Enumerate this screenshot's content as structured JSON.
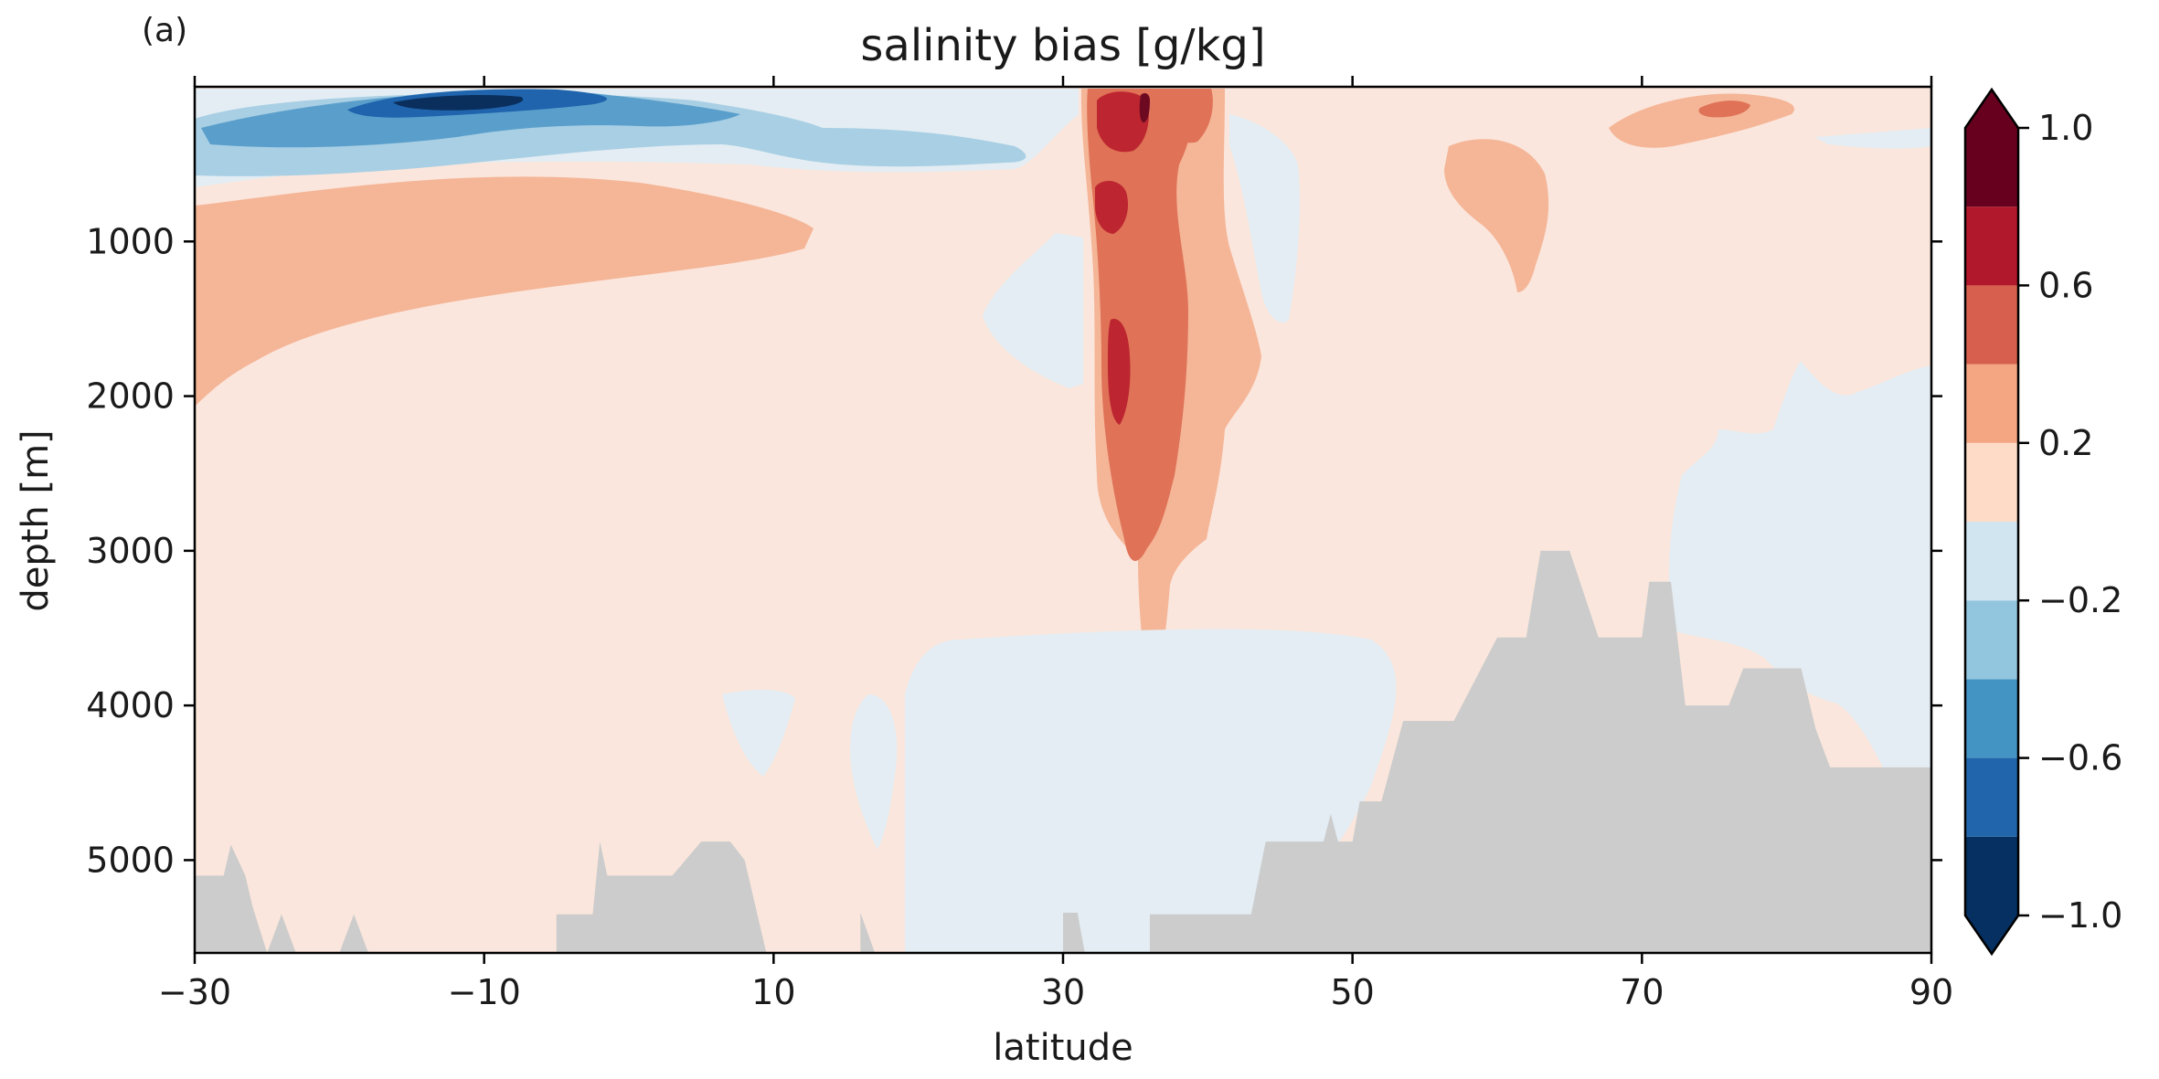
{
  "panel_label": "(a)",
  "chart_data": {
    "type": "heatmap",
    "subtype": "filled-contour",
    "title": "salinity bias [g/kg]",
    "xlabel": "latitude",
    "ylabel": "depth [m]",
    "xlim": [
      -30,
      90
    ],
    "ylim": [
      5600,
      0
    ],
    "y_inverted": true,
    "x_ticks": [
      -30,
      -10,
      10,
      30,
      50,
      70,
      90
    ],
    "x_tick_labels": [
      "−30",
      "−10",
      "10",
      "30",
      "50",
      "70",
      "90"
    ],
    "y_ticks": [
      1000,
      2000,
      3000,
      4000,
      5000
    ],
    "y_tick_labels": [
      "1000",
      "2000",
      "3000",
      "4000",
      "5000"
    ],
    "colorbar": {
      "levels": [
        -1.0,
        -0.8,
        -0.6,
        -0.4,
        -0.2,
        0.0,
        0.2,
        0.4,
        0.6,
        0.8,
        1.0
      ],
      "colors": [
        "#053061",
        "#2166ac",
        "#4393c3",
        "#92c5de",
        "#d1e5f0",
        "#fddbc7",
        "#f4a582",
        "#d6604d",
        "#b2182b",
        "#67001f"
      ],
      "extend_colors": {
        "under": "#053061",
        "over": "#67001f"
      },
      "ticks": [
        -1.0,
        -0.6,
        -0.2,
        0.2,
        0.6,
        1.0
      ],
      "tick_labels": [
        "−1.0",
        "−0.6",
        "−0.2",
        "0.2",
        "0.6",
        "1.0"
      ],
      "extend": "both"
    },
    "colors": {
      "background_field": "#fae6dc",
      "light_blue": "#e3edf3",
      "mid_blue": "#a9cfe4",
      "blue": "#5a9fcb",
      "dark_blue": "#1f64ad",
      "navy": "#0b2f5d",
      "light_red": "#f5b597",
      "red": "#df7257",
      "dark_red": "#bd2630",
      "maroon": "#6d0a22",
      "land": "#cccccc"
    },
    "bathymetry_profile": [
      [
        -30,
        5100
      ],
      [
        -28,
        5100
      ],
      [
        -27.5,
        4900
      ],
      [
        -26.5,
        5100
      ],
      [
        -26,
        5300
      ],
      [
        -25,
        5600
      ],
      [
        -24,
        5350
      ],
      [
        -23,
        5600
      ],
      [
        -20,
        5600
      ],
      [
        -19,
        5350
      ],
      [
        -18,
        5600
      ],
      [
        -5,
        5600
      ],
      [
        -5,
        5350
      ],
      [
        -2.5,
        5350
      ],
      [
        -2,
        4880
      ],
      [
        -1.5,
        5100
      ],
      [
        3,
        5100
      ],
      [
        5,
        4880
      ],
      [
        7,
        4880
      ],
      [
        8,
        5000
      ],
      [
        9.5,
        5600
      ],
      [
        16,
        5600
      ],
      [
        16,
        5340
      ],
      [
        17,
        5600
      ],
      [
        30,
        5600
      ],
      [
        30,
        5340
      ],
      [
        31,
        5340
      ],
      [
        31.5,
        5600
      ],
      [
        36,
        5600
      ],
      [
        36,
        5350
      ],
      [
        43,
        5350
      ],
      [
        44,
        4880
      ],
      [
        48,
        4880
      ],
      [
        48.5,
        4700
      ],
      [
        49,
        4880
      ],
      [
        50,
        4880
      ],
      [
        50.5,
        4620
      ],
      [
        52,
        4620
      ],
      [
        53.5,
        4100
      ],
      [
        57,
        4100
      ],
      [
        60,
        3560
      ],
      [
        62,
        3560
      ],
      [
        63,
        3000
      ],
      [
        65,
        3000
      ],
      [
        67,
        3560
      ],
      [
        70,
        3560
      ],
      [
        70.5,
        3200
      ],
      [
        72,
        3200
      ],
      [
        73,
        4000
      ],
      [
        76,
        4000
      ],
      [
        77,
        3760
      ],
      [
        81,
        3760
      ],
      [
        82,
        4150
      ],
      [
        83,
        4400
      ],
      [
        90,
        4400
      ],
      [
        90,
        5600
      ]
    ]
  }
}
